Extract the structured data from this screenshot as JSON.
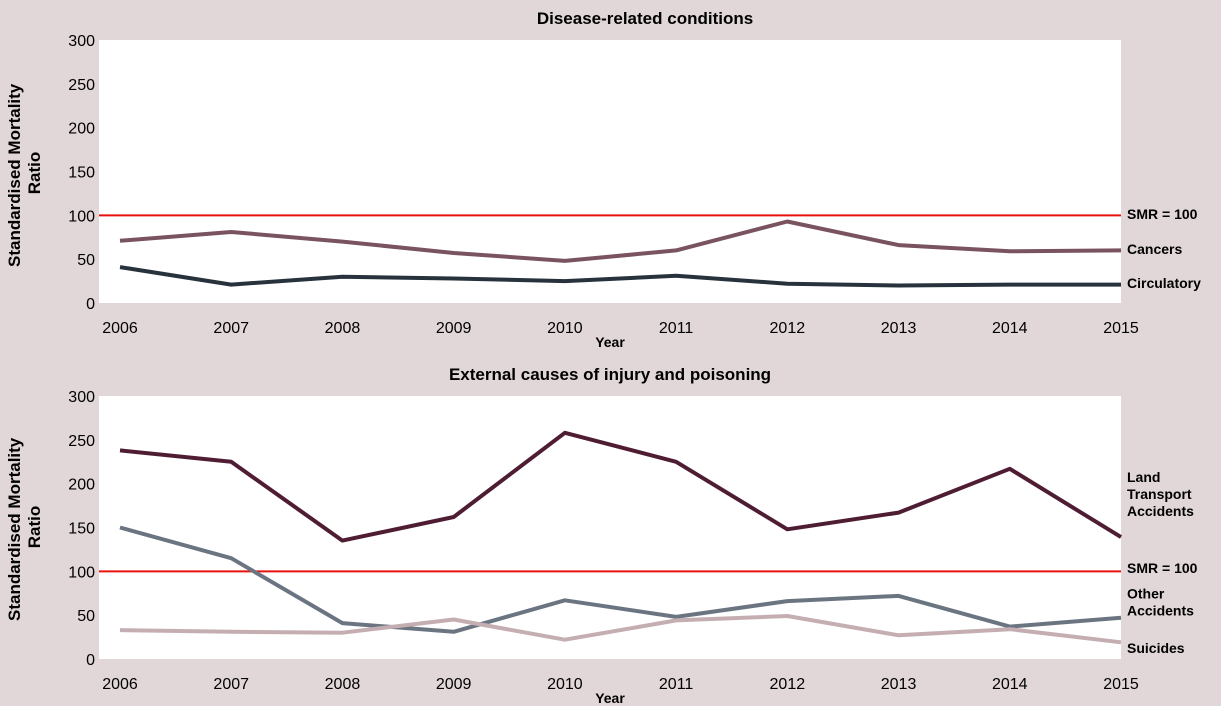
{
  "chart_data": [
    {
      "type": "line",
      "title": "Disease-related conditions",
      "xlabel": "Year",
      "ylabel": "Standardised Mortality Ratio",
      "ylim": [
        0,
        300
      ],
      "yticks": [
        0,
        50,
        100,
        150,
        200,
        250,
        300
      ],
      "x": [
        2006,
        2007,
        2008,
        2009,
        2010,
        2011,
        2012,
        2013,
        2014,
        2015
      ],
      "grid": false,
      "reference_line": {
        "label": "SMR = 100",
        "value": 100,
        "color": "#e8120c"
      },
      "series": [
        {
          "name": "Cancers",
          "label_lines": [
            "Cancers"
          ],
          "color": "#7a5360",
          "values": [
            71,
            81,
            70,
            57,
            48,
            60,
            93,
            66,
            59,
            60
          ]
        },
        {
          "name": "Circulatory",
          "label_lines": [
            "Circulatory"
          ],
          "color": "#27323c",
          "values": [
            41,
            21,
            30,
            28,
            25,
            31,
            22,
            20,
            21,
            21
          ]
        }
      ]
    },
    {
      "type": "line",
      "title": "External causes of injury and poisoning",
      "xlabel": "Year",
      "ylabel": "Standardised Mortality Ratio",
      "ylim": [
        0,
        300
      ],
      "yticks": [
        0,
        50,
        100,
        150,
        200,
        250,
        300
      ],
      "x": [
        2006,
        2007,
        2008,
        2009,
        2010,
        2011,
        2012,
        2013,
        2014,
        2015
      ],
      "grid": false,
      "reference_line": {
        "label": "SMR = 100",
        "value": 100,
        "color": "#e8120c"
      },
      "series": [
        {
          "name": "Land Transport Accidents",
          "label_lines": [
            "Land",
            "Transport",
            "Accidents"
          ],
          "color": "#4f1d33",
          "values": [
            238,
            225,
            135,
            162,
            258,
            225,
            148,
            167,
            217,
            139
          ]
        },
        {
          "name": "Other Accidents",
          "label_lines": [
            "Other",
            "Accidents"
          ],
          "color": "#6b7581",
          "values": [
            150,
            115,
            41,
            31,
            67,
            48,
            66,
            72,
            37,
            47
          ]
        },
        {
          "name": "Suicides",
          "label_lines": [
            "Suicides"
          ],
          "color": "#c5aeb2",
          "values": [
            33,
            31,
            30,
            45,
            22,
            44,
            49,
            27,
            34,
            19
          ]
        }
      ]
    }
  ]
}
